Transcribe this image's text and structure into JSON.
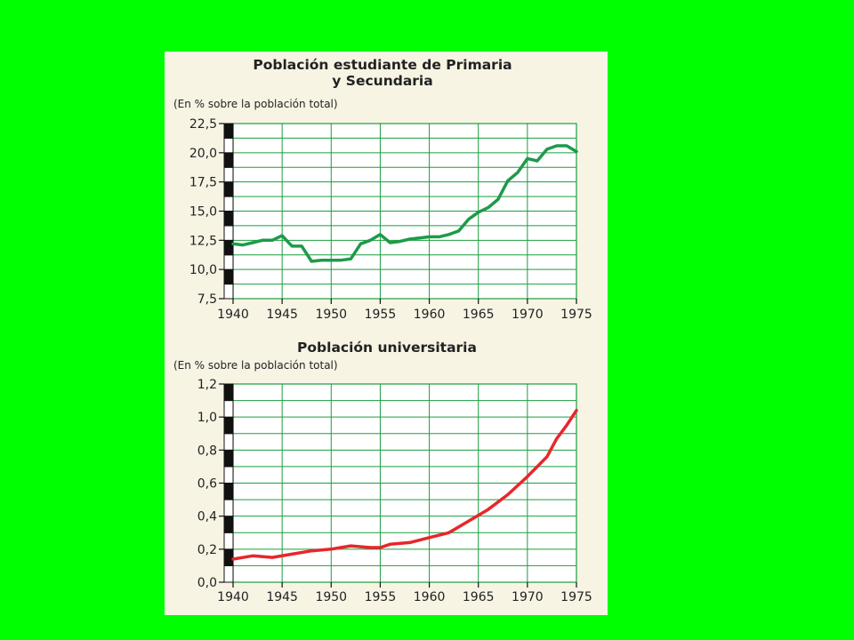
{
  "background_color": "#00ff00",
  "panel_color": "#f7f4e4",
  "grid_color": "#1a9e3e",
  "chart_data": [
    {
      "type": "line",
      "title_lines": [
        "Población estudiante de Primaria",
        "y Secundaria"
      ],
      "unit_note": "(En % sobre la población total)",
      "xlabel": "",
      "ylabel": "",
      "xlim": [
        1940,
        1975
      ],
      "ylim": [
        7.5,
        22.5
      ],
      "x_ticks": [
        1940,
        1945,
        1950,
        1955,
        1960,
        1965,
        1970,
        1975
      ],
      "y_ticks": [
        7.5,
        10.0,
        12.5,
        15.0,
        17.5,
        20.0,
        22.5
      ],
      "y_tick_labels": [
        "7,5",
        "10,0",
        "12,5",
        "15,0",
        "17,5",
        "20,0",
        "22,5"
      ],
      "grid": true,
      "line_color": "#1e9a4a",
      "series": [
        {
          "x": [
            1940,
            1941,
            1942,
            1943,
            1944,
            1945,
            1946,
            1947,
            1948,
            1949,
            1950,
            1951,
            1952,
            1953,
            1954,
            1955,
            1956,
            1957,
            1958,
            1959,
            1960,
            1961,
            1962,
            1963,
            1964,
            1965,
            1966,
            1967,
            1968,
            1969,
            1970,
            1971,
            1972,
            1973,
            1974,
            1975
          ],
          "y": [
            12.2,
            12.1,
            12.3,
            12.5,
            12.5,
            12.9,
            12.0,
            12.0,
            10.7,
            10.8,
            10.8,
            10.8,
            10.9,
            12.2,
            12.5,
            13.0,
            12.3,
            12.4,
            12.6,
            12.7,
            12.8,
            12.8,
            13.0,
            13.3,
            14.3,
            14.9,
            15.3,
            16.0,
            17.6,
            18.3,
            19.5,
            19.3,
            20.3,
            20.6,
            20.6,
            20.1
          ]
        }
      ]
    },
    {
      "type": "line",
      "title_lines": [
        "Población universitaria"
      ],
      "unit_note": "(En % sobre la población total)",
      "xlabel": "",
      "ylabel": "",
      "xlim": [
        1940,
        1975
      ],
      "ylim": [
        0.0,
        1.2
      ],
      "x_ticks": [
        1940,
        1945,
        1950,
        1955,
        1960,
        1965,
        1970,
        1975
      ],
      "y_ticks": [
        0.0,
        0.2,
        0.4,
        0.6,
        0.8,
        1.0,
        1.2
      ],
      "y_tick_labels": [
        "0,0",
        "0,2",
        "0,4",
        "0,6",
        "0,8",
        "1,0",
        "1,2"
      ],
      "grid": true,
      "line_color": "#e8262b",
      "series": [
        {
          "x": [
            1940,
            1942,
            1944,
            1946,
            1948,
            1950,
            1952,
            1954,
            1955,
            1956,
            1958,
            1960,
            1962,
            1964,
            1966,
            1968,
            1970,
            1972,
            1973,
            1974,
            1975
          ],
          "y": [
            0.14,
            0.16,
            0.15,
            0.17,
            0.19,
            0.2,
            0.22,
            0.21,
            0.21,
            0.23,
            0.24,
            0.27,
            0.3,
            0.37,
            0.44,
            0.53,
            0.64,
            0.76,
            0.87,
            0.95,
            1.04
          ]
        }
      ]
    }
  ]
}
